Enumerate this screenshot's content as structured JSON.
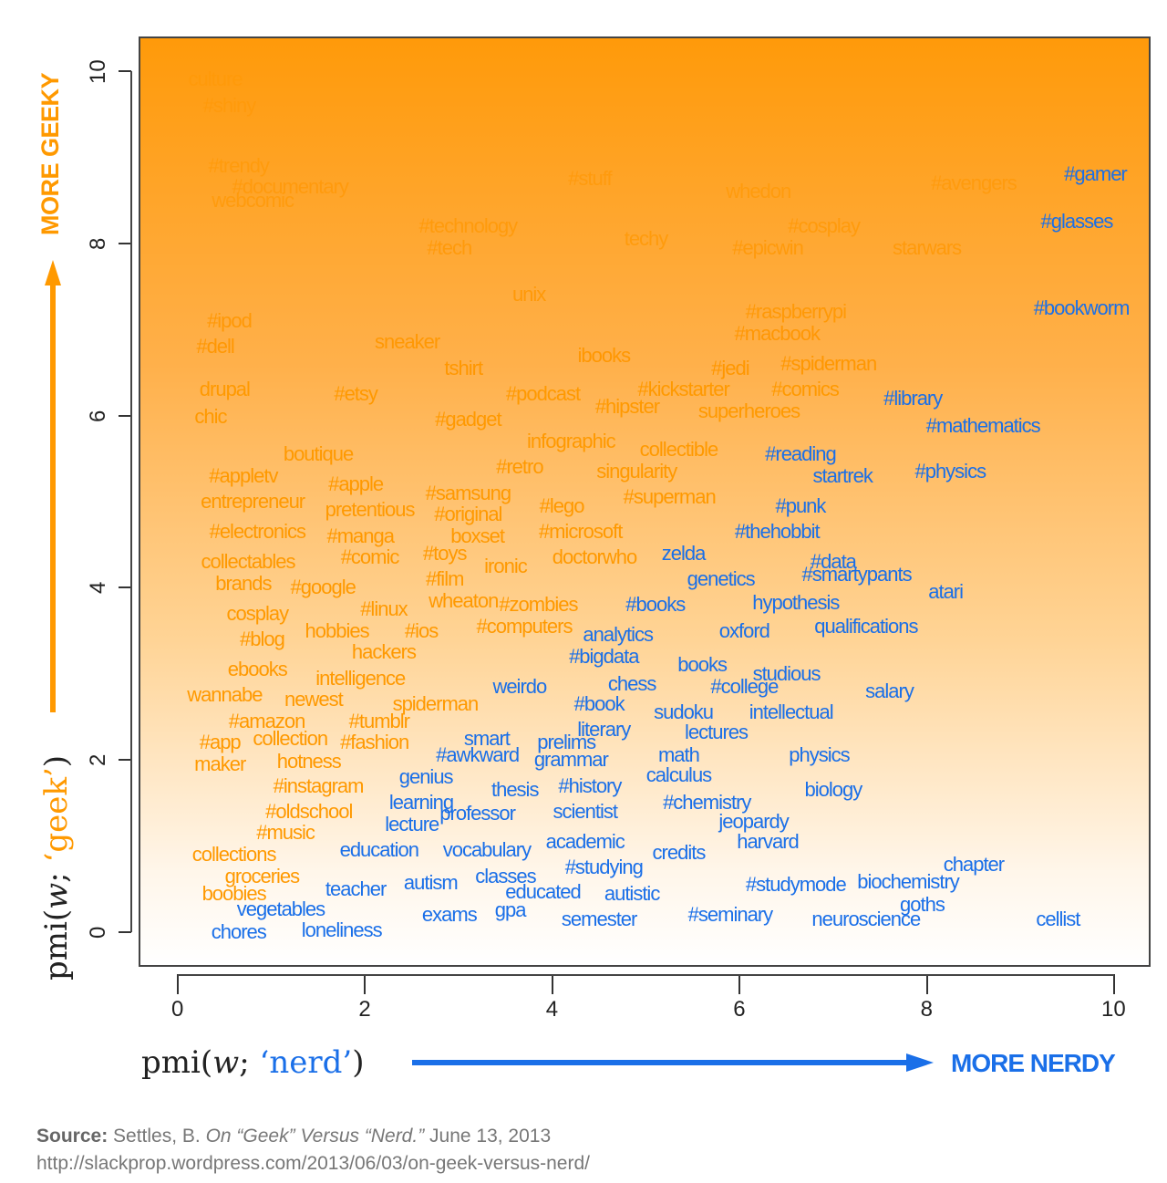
{
  "chart_data": {
    "type": "scatter",
    "title": "",
    "xlabel": "pmi(w; 'nerd')",
    "ylabel": "pmi(w; 'geek')",
    "xlim": [
      -0.4,
      10.4
    ],
    "ylim": [
      -0.4,
      10.4
    ],
    "xticks": [
      0,
      2,
      4,
      6,
      8,
      10
    ],
    "yticks": [
      0,
      2,
      4,
      6,
      8,
      10
    ],
    "grid": false,
    "legend": "none",
    "annotations": [
      "MORE GEEKY",
      "MORE NERDY"
    ],
    "colors": {
      "geek": "#ff9900",
      "nerd": "#1a6fe8"
    },
    "series": [
      {
        "name": "geek-leaning",
        "color": "#ff9900",
        "points": [
          {
            "label": "culture",
            "x": 0.4,
            "y": 9.9
          },
          {
            "label": "#shiny",
            "x": 0.55,
            "y": 9.6
          },
          {
            "label": "#trendy",
            "x": 0.65,
            "y": 8.9
          },
          {
            "label": "#documentary",
            "x": 1.2,
            "y": 8.65
          },
          {
            "label": "webcomic",
            "x": 0.8,
            "y": 8.5
          },
          {
            "label": "#technology",
            "x": 3.1,
            "y": 8.2
          },
          {
            "label": "#tech",
            "x": 2.9,
            "y": 7.95
          },
          {
            "label": "#stuff",
            "x": 4.4,
            "y": 8.75
          },
          {
            "label": "techy",
            "x": 5.0,
            "y": 8.05
          },
          {
            "label": "whedon",
            "x": 6.2,
            "y": 8.6
          },
          {
            "label": "#cosplay",
            "x": 6.9,
            "y": 8.2
          },
          {
            "label": "#epicwin",
            "x": 6.3,
            "y": 7.95
          },
          {
            "label": "#avengers",
            "x": 8.5,
            "y": 8.7
          },
          {
            "label": "starwars",
            "x": 8.0,
            "y": 7.95
          },
          {
            "label": "unix",
            "x": 3.75,
            "y": 7.4
          },
          {
            "label": "#raspberrypi",
            "x": 6.6,
            "y": 7.2
          },
          {
            "label": "#macbook",
            "x": 6.4,
            "y": 6.95
          },
          {
            "label": "#ipod",
            "x": 0.55,
            "y": 7.1
          },
          {
            "label": "#dell",
            "x": 0.4,
            "y": 6.8
          },
          {
            "label": "sneaker",
            "x": 2.45,
            "y": 6.85
          },
          {
            "label": "ibooks",
            "x": 4.55,
            "y": 6.7
          },
          {
            "label": "tshirt",
            "x": 3.05,
            "y": 6.55
          },
          {
            "label": "#jedi",
            "x": 5.9,
            "y": 6.55
          },
          {
            "label": "#spiderman",
            "x": 6.95,
            "y": 6.6
          },
          {
            "label": "drupal",
            "x": 0.5,
            "y": 6.3
          },
          {
            "label": "#etsy",
            "x": 1.9,
            "y": 6.25
          },
          {
            "label": "#podcast",
            "x": 3.9,
            "y": 6.25
          },
          {
            "label": "#kickstarter",
            "x": 5.4,
            "y": 6.3
          },
          {
            "label": "#comics",
            "x": 6.7,
            "y": 6.3
          },
          {
            "label": "chic",
            "x": 0.35,
            "y": 5.98
          },
          {
            "label": "#gadget",
            "x": 3.1,
            "y": 5.95
          },
          {
            "label": "#hipster",
            "x": 4.8,
            "y": 6.1
          },
          {
            "label": "superheroes",
            "x": 6.1,
            "y": 6.05
          },
          {
            "label": "boutique",
            "x": 1.5,
            "y": 5.55
          },
          {
            "label": "infographic",
            "x": 4.2,
            "y": 5.7
          },
          {
            "label": "collectible",
            "x": 5.35,
            "y": 5.6
          },
          {
            "label": "#retro",
            "x": 3.65,
            "y": 5.4
          },
          {
            "label": "singularity",
            "x": 4.9,
            "y": 5.35
          },
          {
            "label": "#appletv",
            "x": 0.7,
            "y": 5.3
          },
          {
            "label": "#apple",
            "x": 1.9,
            "y": 5.2
          },
          {
            "label": "#samsung",
            "x": 3.1,
            "y": 5.1
          },
          {
            "label": "#superman",
            "x": 5.25,
            "y": 5.05
          },
          {
            "label": "entrepreneur",
            "x": 0.8,
            "y": 5.0
          },
          {
            "label": "pretentious",
            "x": 2.05,
            "y": 4.9
          },
          {
            "label": "#original",
            "x": 3.1,
            "y": 4.85
          },
          {
            "label": "#lego",
            "x": 4.1,
            "y": 4.95
          },
          {
            "label": "#electronics",
            "x": 0.85,
            "y": 4.65
          },
          {
            "label": "#manga",
            "x": 1.95,
            "y": 4.6
          },
          {
            "label": "boxset",
            "x": 3.2,
            "y": 4.6
          },
          {
            "label": "#microsoft",
            "x": 4.3,
            "y": 4.65
          },
          {
            "label": "#toys",
            "x": 2.85,
            "y": 4.4
          },
          {
            "label": "doctorwho",
            "x": 4.45,
            "y": 4.35
          },
          {
            "label": "collectables",
            "x": 0.75,
            "y": 4.3
          },
          {
            "label": "#comic",
            "x": 2.05,
            "y": 4.35
          },
          {
            "label": "ironic",
            "x": 3.5,
            "y": 4.25
          },
          {
            "label": "brands",
            "x": 0.7,
            "y": 4.05
          },
          {
            "label": "#google",
            "x": 1.55,
            "y": 4.0
          },
          {
            "label": "#film",
            "x": 2.85,
            "y": 4.1
          },
          {
            "label": "cosplay",
            "x": 0.85,
            "y": 3.7
          },
          {
            "label": "#linux",
            "x": 2.2,
            "y": 3.75
          },
          {
            "label": "wheaton",
            "x": 3.05,
            "y": 3.85
          },
          {
            "label": "#zombies",
            "x": 3.85,
            "y": 3.8
          },
          {
            "label": "#blog",
            "x": 0.9,
            "y": 3.4
          },
          {
            "label": "hobbies",
            "x": 1.7,
            "y": 3.5
          },
          {
            "label": "#ios",
            "x": 2.6,
            "y": 3.5
          },
          {
            "label": "#computers",
            "x": 3.7,
            "y": 3.55
          },
          {
            "label": "hackers",
            "x": 2.2,
            "y": 3.25
          },
          {
            "label": "ebooks",
            "x": 0.85,
            "y": 3.05
          },
          {
            "label": "intelligence",
            "x": 1.95,
            "y": 2.95
          },
          {
            "label": "wannabe",
            "x": 0.5,
            "y": 2.75
          },
          {
            "label": "newest",
            "x": 1.45,
            "y": 2.7
          },
          {
            "label": "spiderman",
            "x": 2.75,
            "y": 2.65
          },
          {
            "label": "#amazon",
            "x": 0.95,
            "y": 2.45
          },
          {
            "label": "#tumblr",
            "x": 2.15,
            "y": 2.45
          },
          {
            "label": "#app",
            "x": 0.45,
            "y": 2.2
          },
          {
            "label": "collection",
            "x": 1.2,
            "y": 2.25
          },
          {
            "label": "#fashion",
            "x": 2.1,
            "y": 2.2
          },
          {
            "label": "maker",
            "x": 0.45,
            "y": 1.95
          },
          {
            "label": "hotness",
            "x": 1.4,
            "y": 1.98
          },
          {
            "label": "#instagram",
            "x": 1.5,
            "y": 1.7
          },
          {
            "label": "#oldschool",
            "x": 1.4,
            "y": 1.4
          },
          {
            "label": "#music",
            "x": 1.15,
            "y": 1.15
          },
          {
            "label": "collections",
            "x": 0.6,
            "y": 0.9
          },
          {
            "label": "groceries",
            "x": 0.9,
            "y": 0.65
          },
          {
            "label": "boobies",
            "x": 0.6,
            "y": 0.45
          }
        ]
      },
      {
        "name": "nerd-leaning",
        "color": "#1a6fe8",
        "points": [
          {
            "label": "#gamer",
            "x": 9.8,
            "y": 8.8
          },
          {
            "label": "#glasses",
            "x": 9.6,
            "y": 8.25
          },
          {
            "label": "#bookworm",
            "x": 9.65,
            "y": 7.25
          },
          {
            "label": "#library",
            "x": 7.85,
            "y": 6.2
          },
          {
            "label": "#mathematics",
            "x": 8.6,
            "y": 5.88
          },
          {
            "label": "#reading",
            "x": 6.65,
            "y": 5.55
          },
          {
            "label": "startrek",
            "x": 7.1,
            "y": 5.3
          },
          {
            "label": "#physics",
            "x": 8.25,
            "y": 5.35
          },
          {
            "label": "#punk",
            "x": 6.65,
            "y": 4.95
          },
          {
            "label": "#thehobbit",
            "x": 6.4,
            "y": 4.65
          },
          {
            "label": "zelda",
            "x": 5.4,
            "y": 4.4
          },
          {
            "label": "#data",
            "x": 7.0,
            "y": 4.3
          },
          {
            "label": "genetics",
            "x": 5.8,
            "y": 4.1
          },
          {
            "label": "#smartypants",
            "x": 7.25,
            "y": 4.15
          },
          {
            "label": "atari",
            "x": 8.2,
            "y": 3.95
          },
          {
            "label": "#books",
            "x": 5.1,
            "y": 3.8
          },
          {
            "label": "hypothesis",
            "x": 6.6,
            "y": 3.82
          },
          {
            "label": "analytics",
            "x": 4.7,
            "y": 3.45
          },
          {
            "label": "oxford",
            "x": 6.05,
            "y": 3.5
          },
          {
            "label": "qualifications",
            "x": 7.35,
            "y": 3.55
          },
          {
            "label": "#bigdata",
            "x": 4.55,
            "y": 3.2
          },
          {
            "label": "books",
            "x": 5.6,
            "y": 3.1
          },
          {
            "label": "studious",
            "x": 6.5,
            "y": 3.0
          },
          {
            "label": "weirdo",
            "x": 3.65,
            "y": 2.85
          },
          {
            "label": "chess",
            "x": 4.85,
            "y": 2.88
          },
          {
            "label": "#college",
            "x": 6.05,
            "y": 2.85
          },
          {
            "label": "salary",
            "x": 7.6,
            "y": 2.8
          },
          {
            "label": "#book",
            "x": 4.5,
            "y": 2.65
          },
          {
            "label": "sudoku",
            "x": 5.4,
            "y": 2.55
          },
          {
            "label": "intellectual",
            "x": 6.55,
            "y": 2.55
          },
          {
            "label": "literary",
            "x": 4.55,
            "y": 2.35
          },
          {
            "label": "lectures",
            "x": 5.75,
            "y": 2.32
          },
          {
            "label": "smart",
            "x": 3.3,
            "y": 2.25
          },
          {
            "label": "prelims",
            "x": 4.15,
            "y": 2.2
          },
          {
            "label": "#awkward",
            "x": 3.2,
            "y": 2.05
          },
          {
            "label": "grammar",
            "x": 4.2,
            "y": 2.0
          },
          {
            "label": "math",
            "x": 5.35,
            "y": 2.05
          },
          {
            "label": "physics",
            "x": 6.85,
            "y": 2.05
          },
          {
            "label": "genius",
            "x": 2.65,
            "y": 1.8
          },
          {
            "label": "calculus",
            "x": 5.35,
            "y": 1.82
          },
          {
            "label": "thesis",
            "x": 3.6,
            "y": 1.65
          },
          {
            "label": "#history",
            "x": 4.4,
            "y": 1.7
          },
          {
            "label": "biology",
            "x": 7.0,
            "y": 1.65
          },
          {
            "label": "learning",
            "x": 2.6,
            "y": 1.5
          },
          {
            "label": "#chemistry",
            "x": 5.65,
            "y": 1.5
          },
          {
            "label": "professor",
            "x": 3.2,
            "y": 1.38
          },
          {
            "label": "scientist",
            "x": 4.35,
            "y": 1.4
          },
          {
            "label": "lecture",
            "x": 2.5,
            "y": 1.25
          },
          {
            "label": "jeopardy",
            "x": 6.15,
            "y": 1.28
          },
          {
            "label": "harvard",
            "x": 6.3,
            "y": 1.05
          },
          {
            "label": "education",
            "x": 2.15,
            "y": 0.95
          },
          {
            "label": "vocabulary",
            "x": 3.3,
            "y": 0.95
          },
          {
            "label": "academic",
            "x": 4.35,
            "y": 1.05
          },
          {
            "label": "credits",
            "x": 5.35,
            "y": 0.92
          },
          {
            "label": "#studying",
            "x": 4.55,
            "y": 0.75
          },
          {
            "label": "chapter",
            "x": 8.5,
            "y": 0.78
          },
          {
            "label": "classes",
            "x": 3.5,
            "y": 0.65
          },
          {
            "label": "#studymode",
            "x": 6.6,
            "y": 0.55
          },
          {
            "label": "biochemistry",
            "x": 7.8,
            "y": 0.58
          },
          {
            "label": "teacher",
            "x": 1.9,
            "y": 0.5
          },
          {
            "label": "autism",
            "x": 2.7,
            "y": 0.57
          },
          {
            "label": "educated",
            "x": 3.9,
            "y": 0.47
          },
          {
            "label": "autistic",
            "x": 4.85,
            "y": 0.45
          },
          {
            "label": "goths",
            "x": 7.95,
            "y": 0.32
          },
          {
            "label": "vegetables",
            "x": 1.1,
            "y": 0.26
          },
          {
            "label": "exams",
            "x": 2.9,
            "y": 0.2
          },
          {
            "label": "gpa",
            "x": 3.55,
            "y": 0.25
          },
          {
            "label": "semester",
            "x": 4.5,
            "y": 0.15
          },
          {
            "label": "#seminary",
            "x": 5.9,
            "y": 0.2
          },
          {
            "label": "neuroscience",
            "x": 7.35,
            "y": 0.15
          },
          {
            "label": "cellist",
            "x": 9.4,
            "y": 0.15
          },
          {
            "label": "chores",
            "x": 0.65,
            "y": 0.0
          },
          {
            "label": "loneliness",
            "x": 1.75,
            "y": 0.02
          }
        ]
      }
    ]
  },
  "axes": {
    "x_ticks": [
      "0",
      "2",
      "4",
      "6",
      "8",
      "10"
    ],
    "y_ticks": [
      "0",
      "2",
      "4",
      "6",
      "8",
      "10"
    ],
    "x_label_prefix": "pmi(",
    "x_label_var": "w",
    "x_label_sep": "; ",
    "x_label_word": "‘nerd’",
    "x_label_suffix": ")",
    "y_label_prefix": "pmi(",
    "y_label_var": "w",
    "y_label_sep": "; ",
    "y_label_word": "‘geek’",
    "y_label_suffix": ")",
    "more_geeky": "MORE GEEKY",
    "more_nerdy": "MORE NERDY"
  },
  "source": {
    "label": "Source:",
    "author": " Settles, B. ",
    "title": "On “Geek” Versus “Nerd.”",
    "date": " June 13, 2013",
    "url": "http://slackprop.wordpress.com/2013/06/03/on-geek-versus-nerd/"
  }
}
